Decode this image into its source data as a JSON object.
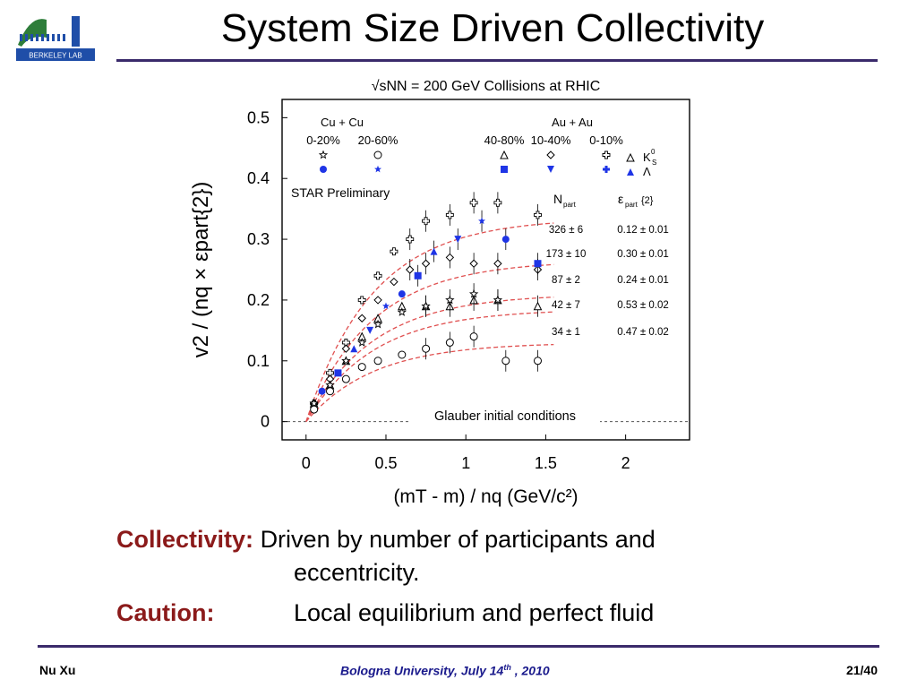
{
  "slide": {
    "title": "System Size Driven Collectivity",
    "logo_text": "BERKELEY LAB",
    "collectivity_label": "Collectivity:",
    "collectivity_text_line1": "Driven by number of participants and",
    "collectivity_text_line2": "eccentricity.",
    "caution_label": "Caution:",
    "caution_text": "Local equilibrium and perfect fluid",
    "footer_left": "Nu Xu",
    "footer_center": "Bologna University, July 14",
    "footer_center_sup": "th",
    "footer_center_tail": " , 2010",
    "footer_right": "21/40",
    "colors": {
      "title_rule": "#3a2a6b",
      "label": "#8b1a1a",
      "footer_center": "#1a1a8c",
      "marker_blue": "#1f35e6",
      "fit_line": "#e05050"
    }
  },
  "chart_data": {
    "type": "scatter",
    "title": "√sNN = 200 GeV Collisions at RHIC",
    "xlabel": "(mT - m) / nq   (GeV/c²)",
    "ylabel": "v2 / (nq × εpart{2})",
    "xlim": [
      -0.15,
      2.4
    ],
    "ylim": [
      -0.03,
      0.53
    ],
    "x_ticks": [
      0,
      0.5,
      1,
      1.5,
      2
    ],
    "x_tick_labels": [
      "0",
      "0.5",
      "1",
      "1.5",
      "2"
    ],
    "y_ticks": [
      0,
      0.1,
      0.2,
      0.3,
      0.4,
      0.5
    ],
    "y_tick_labels": [
      "0",
      "0.1",
      "0.2",
      "0.3",
      "0.4",
      "0.5"
    ],
    "legend": {
      "groups": [
        {
          "system": "Cu + Cu",
          "centralities": [
            "0-20%",
            "20-60%"
          ]
        },
        {
          "system": "Au + Au",
          "centralities": [
            "40-80%",
            "10-40%",
            "0-10%"
          ]
        }
      ],
      "particles": [
        "K",
        "Λ"
      ],
      "particle_sub": "S",
      "particle_sup": "0"
    },
    "annotation": "STAR Preliminary",
    "glauber_label": "Glauber initial conditions",
    "table": {
      "headers": [
        "N",
        "ε"
      ],
      "header_subs": [
        "part",
        "part"
      ],
      "header_tails": [
        "",
        "{2}"
      ],
      "rows": [
        [
          "326 ± 6",
          "0.12 ± 0.01"
        ],
        [
          "173 ± 10",
          "0.30 ± 0.01"
        ],
        [
          "87 ± 2",
          "0.24 ± 0.01"
        ],
        [
          "42 ± 7",
          "0.53 ± 0.02"
        ],
        [
          "34 ± 1",
          "0.47 ± 0.02"
        ]
      ]
    },
    "series": [
      {
        "centrality": "Au+Au 0-10%",
        "marker": "cross-open",
        "x": [
          0.05,
          0.15,
          0.25,
          0.35,
          0.45,
          0.55,
          0.65,
          0.75,
          0.9,
          1.05,
          1.2,
          1.45
        ],
        "y": [
          0.03,
          0.08,
          0.13,
          0.2,
          0.24,
          0.28,
          0.3,
          0.33,
          0.34,
          0.36,
          0.36,
          0.34
        ],
        "fit_asym": 0.335
      },
      {
        "centrality": "Au+Au 10-40%",
        "marker": "diamond-open",
        "x": [
          0.05,
          0.15,
          0.25,
          0.35,
          0.45,
          0.55,
          0.65,
          0.75,
          0.9,
          1.05,
          1.2,
          1.45
        ],
        "y": [
          0.03,
          0.07,
          0.12,
          0.17,
          0.2,
          0.23,
          0.25,
          0.26,
          0.27,
          0.26,
          0.26,
          0.25
        ],
        "fit_asym": 0.265
      },
      {
        "centrality": "Au+Au 40-80%",
        "marker": "triangle-open",
        "x": [
          0.05,
          0.15,
          0.25,
          0.35,
          0.45,
          0.6,
          0.75,
          0.9,
          1.05,
          1.2,
          1.45
        ],
        "y": [
          0.03,
          0.06,
          0.1,
          0.14,
          0.17,
          0.19,
          0.19,
          0.19,
          0.2,
          0.2,
          0.19
        ],
        "fit_asym": 0.21
      },
      {
        "centrality": "Cu+Cu 0-20%",
        "marker": "star-open",
        "x": [
          0.05,
          0.15,
          0.25,
          0.35,
          0.45,
          0.6,
          0.75,
          0.9,
          1.05,
          1.2
        ],
        "y": [
          0.03,
          0.06,
          0.1,
          0.13,
          0.16,
          0.18,
          0.19,
          0.2,
          0.21,
          0.2
        ],
        "fit_asym": 0.185
      },
      {
        "centrality": "Cu+Cu 20-60%",
        "marker": "circle-open",
        "x": [
          0.05,
          0.15,
          0.25,
          0.35,
          0.45,
          0.6,
          0.75,
          0.9,
          1.05,
          1.25,
          1.45
        ],
        "y": [
          0.02,
          0.05,
          0.07,
          0.09,
          0.1,
          0.11,
          0.12,
          0.13,
          0.14,
          0.1,
          0.1
        ],
        "fit_asym": 0.13
      },
      {
        "centrality": "Λ (blue filled)",
        "marker": "blue-filled",
        "x": [
          0.1,
          0.2,
          0.3,
          0.4,
          0.5,
          0.6,
          0.7,
          0.8,
          0.95,
          1.1,
          1.25,
          1.45
        ],
        "y": [
          0.05,
          0.08,
          0.12,
          0.15,
          0.19,
          0.21,
          0.24,
          0.28,
          0.3,
          0.33,
          0.3,
          0.26
        ],
        "fit_asym": null
      }
    ]
  }
}
